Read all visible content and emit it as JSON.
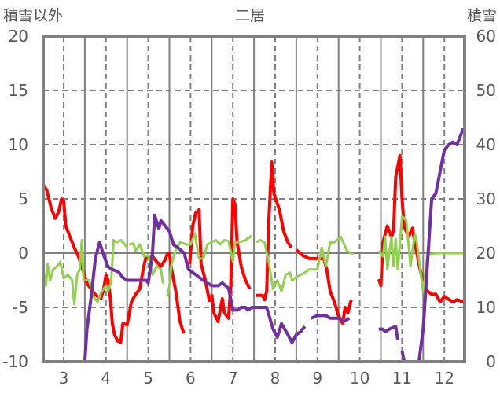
{
  "chart_data": {
    "type": "line",
    "title": "二居",
    "ylabel_left": "積雪以外",
    "ylabel_right": "積雪",
    "xlim": [
      2.52,
      12.46
    ],
    "ylim_left": [
      -10,
      20
    ],
    "ylim_right": [
      0,
      60
    ],
    "x_ticks": [
      3,
      4,
      5,
      6,
      7,
      8,
      9,
      10,
      11,
      12
    ],
    "y_ticks_left": [
      20,
      15,
      10,
      5,
      0,
      -5,
      -10
    ],
    "y_ticks_right": [
      60,
      50,
      40,
      30,
      20,
      10,
      0
    ],
    "grid": true,
    "series": [
      {
        "color": "#ff0000",
        "axis": "left",
        "segments": [
          [
            [
              2.52,
              6.3
            ],
            [
              2.6,
              5.8
            ],
            [
              2.7,
              4.2
            ],
            [
              2.8,
              3.2
            ],
            [
              2.88,
              3.8
            ],
            [
              2.95,
              5
            ],
            [
              3.0,
              4.8
            ],
            [
              3.05,
              2.5
            ],
            [
              3.15,
              1.5
            ],
            [
              3.25,
              0.5
            ],
            [
              3.35,
              -0.3
            ],
            [
              3.45,
              -1.5
            ],
            [
              3.55,
              -2.8
            ],
            [
              3.65,
              -3.3
            ],
            [
              3.72,
              -3.7
            ],
            [
              3.8,
              -4.0
            ],
            [
              3.88,
              -4.2
            ],
            [
              3.95,
              -3.2
            ],
            [
              4.0,
              -2.0
            ],
            [
              4.05,
              -2.5
            ],
            [
              4.1,
              -4.0
            ],
            [
              4.15,
              -6.5
            ],
            [
              4.2,
              -7.5
            ],
            [
              4.28,
              -8.1
            ],
            [
              4.35,
              -8.2
            ],
            [
              4.4,
              -6.5
            ],
            [
              4.5,
              -6.6
            ],
            [
              4.6,
              -4.5
            ],
            [
              4.7,
              -3.8
            ],
            [
              4.8,
              -3.3
            ],
            [
              4.88,
              -1.5
            ],
            [
              4.95,
              -0.3
            ],
            [
              5.0,
              -0.5
            ],
            [
              5.1,
              -0.3
            ],
            [
              5.2,
              -0.8
            ],
            [
              5.3,
              -1.2
            ],
            [
              5.4,
              -0.6
            ],
            [
              5.45,
              -0.1
            ],
            [
              5.5,
              0
            ],
            [
              5.55,
              -1.5
            ],
            [
              5.65,
              -3.5
            ],
            [
              5.75,
              -6.3
            ],
            [
              5.84,
              -7.4
            ]
          ],
          [
            [
              5.98,
              -1.0
            ],
            [
              6.05,
              2.5
            ],
            [
              6.12,
              3.7
            ],
            [
              6.2,
              4.0
            ],
            [
              6.25,
              -1.0
            ],
            [
              6.35,
              -2.5
            ],
            [
              6.45,
              -4.5
            ]
          ],
          [
            [
              6.5,
              -3.8
            ],
            [
              6.55,
              -5.5
            ],
            [
              6.65,
              -6.3
            ],
            [
              6.75,
              -4.2
            ],
            [
              6.8,
              -5.5
            ],
            [
              6.9,
              -6.0
            ],
            [
              6.95,
              -3.0
            ],
            [
              7.0,
              5.0
            ],
            [
              7.05,
              4.5
            ],
            [
              7.1,
              1.0
            ],
            [
              7.2,
              -1.3
            ],
            [
              7.3,
              -2.5
            ],
            [
              7.4,
              -3.3
            ]
          ],
          [
            [
              7.55,
              -3.9
            ],
            [
              7.7,
              -3.9
            ],
            [
              7.75,
              -4.3
            ],
            [
              7.8,
              -3.5
            ],
            [
              7.85,
              3.0
            ],
            [
              7.92,
              8.4
            ],
            [
              7.97,
              5.5
            ],
            [
              8.1,
              4.0
            ],
            [
              8.2,
              2.0
            ],
            [
              8.3,
              1.0
            ],
            [
              8.38,
              0.5
            ]
          ],
          [
            [
              8.5,
              0.3
            ],
            [
              8.65,
              -0.2
            ],
            [
              8.8,
              -0.5
            ],
            [
              9.0,
              -0.5
            ],
            [
              9.15,
              -0.5
            ],
            [
              9.22,
              -1.5
            ],
            [
              9.3,
              -3.5
            ],
            [
              9.4,
              -4.5
            ],
            [
              9.5,
              -5.8
            ],
            [
              9.6,
              -6.5
            ],
            [
              9.65,
              -5.0
            ],
            [
              9.72,
              -5.5
            ],
            [
              9.8,
              -4.3
            ]
          ],
          [
            [
              10.45,
              -2.4
            ],
            [
              10.5,
              -3.0
            ],
            [
              10.55,
              1.0
            ],
            [
              10.65,
              2.5
            ],
            [
              10.75,
              1.5
            ],
            [
              10.8,
              2.0
            ],
            [
              10.85,
              7.0
            ],
            [
              10.95,
              9.0
            ],
            [
              11.0,
              5.0
            ],
            [
              11.05,
              2.5
            ],
            [
              11.15,
              1.5
            ],
            [
              11.25,
              2.3
            ],
            [
              11.3,
              1.0
            ],
            [
              11.4,
              -1.0
            ],
            [
              11.5,
              -2.8
            ],
            [
              11.6,
              -3.5
            ],
            [
              11.7,
              -3.8
            ],
            [
              11.8,
              -3.8
            ],
            [
              11.9,
              -4.5
            ],
            [
              12.0,
              -4.0
            ],
            [
              12.2,
              -4.5
            ],
            [
              12.3,
              -4.3
            ],
            [
              12.45,
              -4.5
            ]
          ]
        ]
      },
      {
        "color": "#92d050",
        "axis": "left",
        "segments": [
          [
            [
              2.52,
              -1.5
            ],
            [
              2.58,
              -3.0
            ],
            [
              2.62,
              -1.0
            ],
            [
              2.68,
              -2.5
            ],
            [
              2.75,
              -1.5
            ],
            [
              2.85,
              -1.2
            ],
            [
              2.92,
              -0.8
            ],
            [
              3.0,
              -2.3
            ],
            [
              3.1,
              -2.0
            ],
            [
              3.2,
              -2.5
            ],
            [
              3.25,
              -4.7
            ],
            [
              3.32,
              -2.0
            ],
            [
              3.38,
              -1.5
            ],
            [
              3.43,
              1.2
            ],
            [
              3.47,
              -2.5
            ],
            [
              3.6,
              -2.5
            ],
            [
              3.7,
              -4.0
            ],
            [
              3.8,
              -4.5
            ],
            [
              3.9,
              -3.5
            ],
            [
              4.0,
              -3.0
            ],
            [
              4.05,
              -3.5
            ],
            [
              4.12,
              -2.7
            ],
            [
              4.18,
              1.2
            ],
            [
              4.25,
              1.0
            ],
            [
              4.35,
              1.2
            ],
            [
              4.45,
              0.8
            ],
            [
              4.5,
              0.5
            ]
          ],
          [
            [
              4.55,
              0.8
            ],
            [
              4.65,
              0.9
            ],
            [
              4.7,
              0.2
            ],
            [
              4.8,
              0.8
            ],
            [
              4.9,
              -0.3
            ],
            [
              5.0,
              -0.2
            ],
            [
              5.1,
              -2.0
            ],
            [
              5.2,
              -1.2
            ],
            [
              5.3,
              -1.5
            ],
            [
              5.35,
              -2.8
            ]
          ],
          [
            [
              5.45,
              -4.0
            ],
            [
              5.5,
              -3.0
            ],
            [
              5.55,
              -1.0
            ],
            [
              5.65,
              0.3
            ],
            [
              5.75,
              1.0
            ],
            [
              5.9,
              0.8
            ],
            [
              6.0,
              0.8
            ],
            [
              6.1,
              1.8
            ],
            [
              6.2,
              -0.5
            ],
            [
              6.3,
              -0.5
            ],
            [
              6.4,
              0.8
            ],
            [
              6.5,
              1.0
            ],
            [
              6.6,
              1.2
            ],
            [
              6.7,
              0.8
            ],
            [
              6.8,
              1.2
            ],
            [
              6.9,
              1.1
            ],
            [
              7.0,
              -0.8
            ],
            [
              7.05,
              1.0
            ],
            [
              7.15,
              1.0
            ],
            [
              7.3,
              1.2
            ],
            [
              7.45,
              1.6
            ]
          ],
          [
            [
              7.55,
              1.0
            ],
            [
              7.65,
              1.2
            ],
            [
              7.75,
              1.0
            ],
            [
              7.85,
              -0.8
            ],
            [
              7.95,
              -3.3
            ],
            [
              8.05,
              -2.5
            ],
            [
              8.15,
              -3.5
            ],
            [
              8.25,
              -2.0
            ],
            [
              8.35,
              -1.8
            ],
            [
              8.4,
              -2.5
            ],
            [
              8.5,
              -2.2
            ],
            [
              8.6,
              -2.0
            ],
            [
              8.7,
              -1.8
            ],
            [
              8.8,
              -1.5
            ],
            [
              9.0,
              -1.5
            ],
            [
              9.1,
              0.5
            ],
            [
              9.2,
              -1.2
            ],
            [
              9.3,
              1.0
            ],
            [
              9.4,
              1.0
            ],
            [
              9.55,
              1.5
            ],
            [
              9.7,
              0.2
            ],
            [
              9.85,
              -0.1
            ]
          ],
          [
            [
              10.45,
              0.2
            ],
            [
              10.55,
              -0.3
            ],
            [
              10.6,
              1.5
            ],
            [
              10.65,
              -1.5
            ],
            [
              10.75,
              1.5
            ],
            [
              10.8,
              -1.2
            ],
            [
              10.85,
              1.3
            ],
            [
              10.9,
              -1.5
            ],
            [
              11.0,
              3.4
            ],
            [
              11.1,
              3.0
            ],
            [
              11.2,
              -1.2
            ],
            [
              11.3,
              1.8
            ],
            [
              11.35,
              1.0
            ],
            [
              11.5,
              -3.6
            ],
            [
              11.6,
              -0.2
            ],
            [
              11.8,
              0
            ],
            [
              12.45,
              0
            ]
          ]
        ]
      },
      {
        "color": "#7030a0",
        "axis": "right",
        "segments": [
          [
            [
              2.52,
              0
            ],
            [
              3.5,
              0
            ],
            [
              3.55,
              6
            ],
            [
              3.65,
              12
            ],
            [
              3.75,
              19
            ],
            [
              3.85,
              22
            ],
            [
              3.95,
              19.5
            ],
            [
              4.05,
              17.5
            ],
            [
              4.15,
              17
            ],
            [
              4.3,
              16.5
            ],
            [
              4.4,
              15.5
            ],
            [
              4.5,
              15
            ],
            [
              4.95,
              15
            ],
            [
              5.0,
              14.5
            ],
            [
              5.1,
              20
            ],
            [
              5.15,
              27
            ],
            [
              5.25,
              24.5
            ],
            [
              5.3,
              26
            ],
            [
              5.4,
              25
            ],
            [
              5.5,
              24
            ],
            [
              5.6,
              21.5
            ],
            [
              5.7,
              21
            ],
            [
              5.85,
              20
            ],
            [
              5.95,
              17
            ],
            [
              6.3,
              15
            ],
            [
              6.5,
              14
            ],
            [
              6.65,
              14
            ],
            [
              6.75,
              14.5
            ],
            [
              6.9,
              13.5
            ],
            [
              7.0,
              9.5
            ],
            [
              7.1,
              9.5
            ],
            [
              7.2,
              10
            ],
            [
              7.3,
              10
            ],
            [
              7.35,
              9.5
            ],
            [
              7.45,
              10
            ],
            [
              7.8,
              10
            ],
            [
              7.95,
              6
            ],
            [
              8.05,
              4.5
            ],
            [
              8.15,
              7
            ],
            [
              8.3,
              5
            ],
            [
              8.4,
              3.5
            ],
            [
              8.5,
              5
            ],
            [
              8.6,
              5.5
            ],
            [
              8.7,
              6.5
            ]
          ],
          [
            [
              8.85,
              8
            ],
            [
              9.0,
              8.5
            ],
            [
              9.2,
              8.5
            ],
            [
              9.3,
              8
            ],
            [
              9.5,
              8
            ],
            [
              9.65,
              7.5
            ],
            [
              9.75,
              8
            ]
          ],
          [
            [
              10.45,
              6
            ],
            [
              10.55,
              6
            ],
            [
              10.6,
              5.5
            ],
            [
              10.7,
              6
            ],
            [
              10.85,
              6.5
            ],
            [
              10.9,
              4
            ]
          ],
          [
            [
              11.0,
              2
            ],
            [
              11.05,
              0
            ],
            [
              11.4,
              0
            ],
            [
              11.5,
              6
            ],
            [
              11.7,
              30
            ],
            [
              11.8,
              31
            ],
            [
              11.9,
              35
            ],
            [
              12.0,
              39
            ],
            [
              12.1,
              40
            ],
            [
              12.2,
              40.5
            ],
            [
              12.3,
              40
            ],
            [
              12.35,
              41
            ],
            [
              12.45,
              43
            ]
          ]
        ]
      }
    ]
  }
}
